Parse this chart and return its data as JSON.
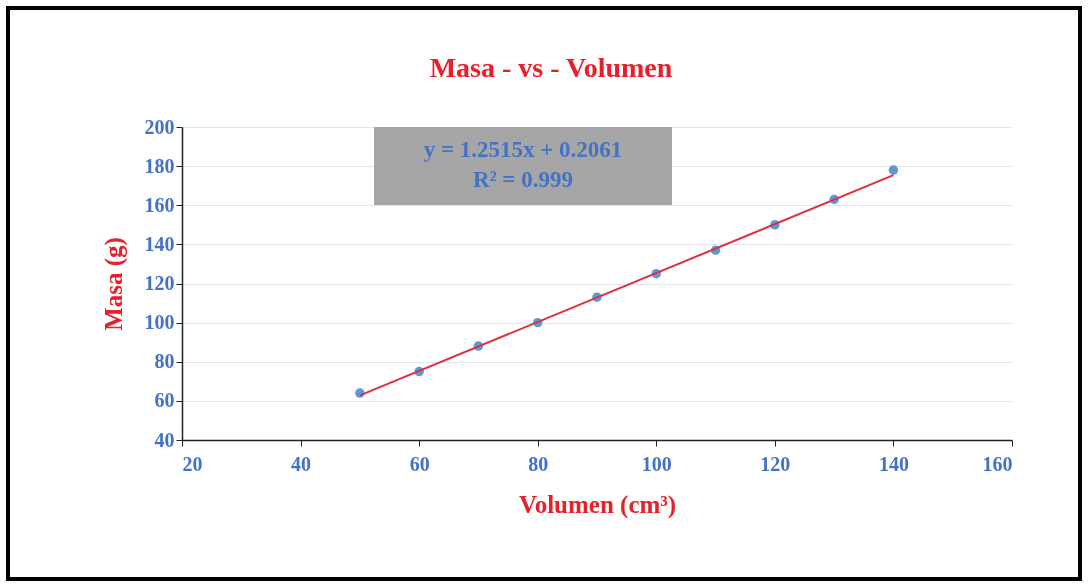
{
  "chart_data": {
    "type": "scatter",
    "title": "Masa - vs - Volumen",
    "xlabel": "Volumen (cm³)",
    "ylabel": "Masa (g)",
    "xlim": [
      20,
      160
    ],
    "xticks": [
      20,
      40,
      60,
      80,
      100,
      120,
      140,
      160
    ],
    "ylim": [
      40,
      200
    ],
    "yticks": [
      40,
      60,
      80,
      100,
      120,
      140,
      160,
      180,
      200
    ],
    "grid": "y",
    "annotations": [
      "y = 1.2515x + 0.2061",
      "R² = 0.999"
    ],
    "series": [
      {
        "marker": "circle",
        "color": "#5b9bd5",
        "x": [
          50,
          60,
          70,
          80,
          90,
          100,
          110,
          120,
          130,
          140
        ],
        "values": [
          64,
          75,
          88,
          100,
          113,
          125,
          137,
          150,
          163,
          178
        ]
      },
      {
        "type": "line",
        "color": "#e0303c",
        "x": [
          50,
          140
        ],
        "values": [
          62.8,
          175.4
        ]
      }
    ]
  }
}
